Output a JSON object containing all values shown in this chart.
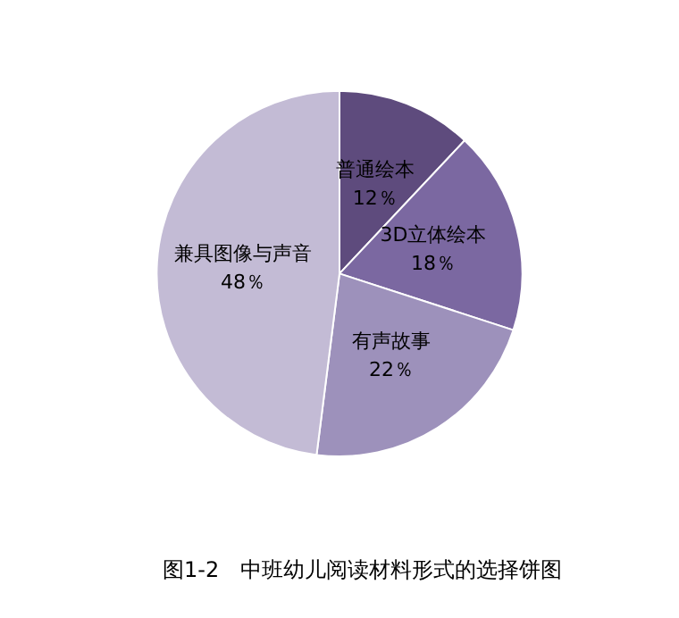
{
  "chart_data": {
    "type": "pie",
    "title": "图1-2　中班幼儿阅读材料形式的选择饼图",
    "categories": [
      "普通绘本",
      "3D立体绘本",
      "有声故事",
      "兼具图像与声音"
    ],
    "values": [
      12,
      18,
      22,
      48
    ],
    "value_labels": [
      "12％",
      "18％",
      "22％",
      "48％"
    ],
    "colors": [
      "#5e4b7d",
      "#7b68a1",
      "#9d91bb",
      "#c3bbd5"
    ],
    "legend": false
  }
}
